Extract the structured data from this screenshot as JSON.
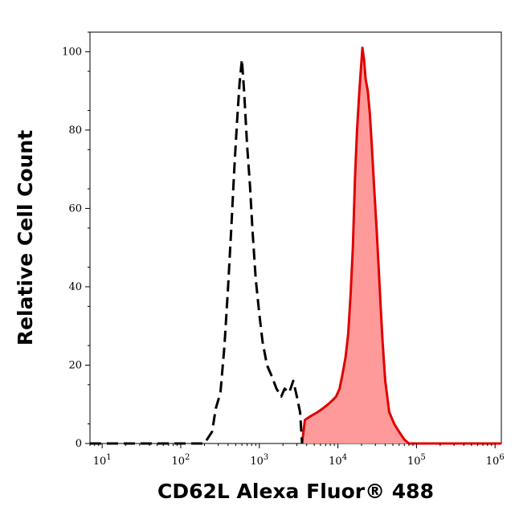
{
  "chart_data": {
    "type": "area",
    "title": "",
    "xlabel": "CD62L Alexa Fluor® 488",
    "ylabel": "Relative Cell Count",
    "x_scale": "log",
    "xlim": [
      7,
      1200000
    ],
    "ylim": [
      0,
      105
    ],
    "x_ticks": [
      {
        "value": 10,
        "base": "10",
        "exp": "1"
      },
      {
        "value": 100,
        "base": "10",
        "exp": "2"
      },
      {
        "value": 1000,
        "base": "10",
        "exp": "3"
      },
      {
        "value": 10000,
        "base": "10",
        "exp": "4"
      },
      {
        "value": 100000,
        "base": "10",
        "exp": "5"
      },
      {
        "value": 1000000,
        "base": "10",
        "exp": "6"
      }
    ],
    "y_ticks": [
      0,
      20,
      40,
      60,
      80,
      100
    ],
    "grid": false,
    "legend": "none",
    "series": [
      {
        "style": "dashed-line",
        "color": "#000000",
        "x": [
          7,
          200,
          250,
          280,
          320,
          360,
          400,
          440,
          480,
          520,
          560,
          600,
          640,
          700,
          760,
          820,
          900,
          1000,
          1100,
          1250,
          1450,
          1650,
          1900,
          2100,
          2400,
          2700,
          3000,
          3300,
          3500
        ],
        "y": [
          0,
          0,
          3,
          9,
          13,
          25,
          40,
          55,
          70,
          82,
          92,
          98,
          90,
          76,
          66,
          54,
          42,
          33,
          26,
          20,
          17,
          14,
          12,
          14,
          13,
          16,
          12,
          8,
          0
        ]
      },
      {
        "style": "filled-area",
        "color": "#e00000",
        "fill": "#ff9a9a",
        "x": [
          3500,
          3800,
          4500,
          5500,
          6500,
          7500,
          8500,
          9500,
          10500,
          11500,
          12500,
          13500,
          14500,
          15500,
          16500,
          17500,
          18500,
          19500,
          20500,
          21500,
          22500,
          24000,
          25500,
          27000,
          29000,
          31000,
          33000,
          35000,
          37000,
          40000,
          45000,
          52000,
          60000,
          70000,
          80000,
          1200000
        ],
        "y": [
          0,
          6,
          7,
          8,
          9,
          10,
          11,
          12,
          14,
          18,
          22,
          28,
          38,
          50,
          68,
          80,
          88,
          95,
          101,
          98,
          93,
          90,
          84,
          76,
          65,
          55,
          45,
          35,
          26,
          16,
          8,
          5,
          3,
          1,
          0,
          0
        ]
      }
    ]
  }
}
